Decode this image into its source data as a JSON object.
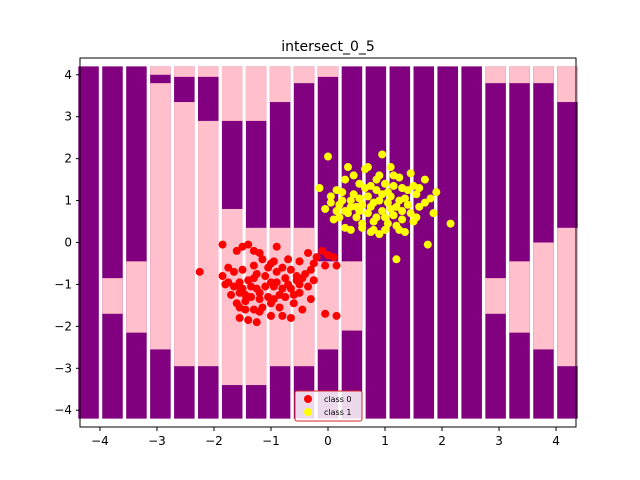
{
  "chart_data": {
    "type": "scatter",
    "title": "intersect_0_5",
    "xlabel": "",
    "ylabel": "",
    "xlim": [
      -4.35,
      4.35
    ],
    "ylim": [
      -4.4,
      4.4
    ],
    "x_ticks": [
      -4,
      -3,
      -2,
      -1,
      0,
      1,
      2,
      3,
      4
    ],
    "y_ticks": [
      -4,
      -3,
      -2,
      -1,
      0,
      1,
      2,
      3,
      4
    ],
    "grid": false,
    "legend_position": "bottom-center",
    "background_regions": {
      "colors": {
        "class_0": "#ffc0cb",
        "class_1": "#800080"
      },
      "y_min": -4.2,
      "y_max": 4.2,
      "column_half_width": 0.18,
      "columns": [
        {
          "x": -4.2,
          "class_0_intervals": []
        },
        {
          "x": -3.78,
          "class_0_intervals": [
            [
              -1.7,
              -0.85
            ]
          ]
        },
        {
          "x": -3.36,
          "class_0_intervals": [
            [
              -2.15,
              -0.45
            ]
          ]
        },
        {
          "x": -2.94,
          "class_0_intervals": [
            [
              -2.55,
              3.8
            ],
            [
              4.0,
              4.2
            ]
          ]
        },
        {
          "x": -2.52,
          "class_0_intervals": [
            [
              -2.95,
              3.35
            ],
            [
              3.95,
              4.2
            ]
          ]
        },
        {
          "x": -2.1,
          "class_0_intervals": [
            [
              -2.95,
              2.9
            ],
            [
              3.95,
              4.2
            ]
          ]
        },
        {
          "x": -1.68,
          "class_0_intervals": [
            [
              -3.4,
              0.8
            ],
            [
              2.9,
              4.2
            ]
          ]
        },
        {
          "x": -1.26,
          "class_0_intervals": [
            [
              -3.4,
              0.35
            ],
            [
              2.9,
              4.2
            ]
          ]
        },
        {
          "x": -0.84,
          "class_0_intervals": [
            [
              -2.95,
              0.35
            ],
            [
              3.35,
              4.2
            ]
          ]
        },
        {
          "x": -0.42,
          "class_0_intervals": [
            [
              -2.95,
              0.35
            ],
            [
              3.8,
              4.2
            ]
          ]
        },
        {
          "x": 0.0,
          "class_0_intervals": [
            [
              -2.55,
              -0.45
            ],
            [
              3.95,
              4.2
            ]
          ]
        },
        {
          "x": 0.42,
          "class_0_intervals": [
            [
              -2.1,
              -0.45
            ]
          ]
        },
        {
          "x": 0.84,
          "class_0_intervals": []
        },
        {
          "x": 1.26,
          "class_0_intervals": []
        },
        {
          "x": 1.68,
          "class_0_intervals": []
        },
        {
          "x": 2.1,
          "class_0_intervals": []
        },
        {
          "x": 2.52,
          "class_0_intervals": []
        },
        {
          "x": 2.94,
          "class_0_intervals": [
            [
              -1.7,
              -0.85
            ],
            [
              3.8,
              4.2
            ]
          ]
        },
        {
          "x": 3.36,
          "class_0_intervals": [
            [
              -2.15,
              -0.45
            ],
            [
              3.8,
              4.2
            ]
          ]
        },
        {
          "x": 3.78,
          "class_0_intervals": [
            [
              -2.55,
              0.0
            ],
            [
              3.8,
              4.2
            ]
          ]
        },
        {
          "x": 4.2,
          "class_0_intervals": [
            [
              -2.95,
              0.35
            ],
            [
              3.35,
              4.2
            ]
          ]
        }
      ]
    },
    "series": [
      {
        "name": "class 0",
        "color": "#ff0000",
        "points": [
          [
            -2.25,
            -0.7
          ],
          [
            -1.85,
            -0.8
          ],
          [
            -1.75,
            -0.95
          ],
          [
            -1.7,
            -1.25
          ],
          [
            -1.65,
            -0.7
          ],
          [
            -1.6,
            -1.45
          ],
          [
            -1.55,
            -1.05
          ],
          [
            -1.5,
            -0.65
          ],
          [
            -1.45,
            -1.6
          ],
          [
            -1.4,
            -1.85
          ],
          [
            -1.35,
            -1.3
          ],
          [
            -1.3,
            -0.85
          ],
          [
            -1.25,
            -1.1
          ],
          [
            -1.2,
            -1.65
          ],
          [
            -1.15,
            -1.55
          ],
          [
            -1.1,
            -0.8
          ],
          [
            -1.05,
            -1.3
          ],
          [
            -1.0,
            -0.95
          ],
          [
            -0.95,
            -1.35
          ],
          [
            -0.9,
            -0.7
          ],
          [
            -0.85,
            -1.25
          ],
          [
            -0.8,
            -1.75
          ],
          [
            -0.75,
            -0.85
          ],
          [
            -0.7,
            -1.0
          ],
          [
            -0.65,
            -0.65
          ],
          [
            -0.6,
            -1.45
          ],
          [
            -0.55,
            -0.9
          ],
          [
            -0.5,
            -1.2
          ],
          [
            -0.45,
            -1.6
          ],
          [
            -0.4,
            -0.75
          ],
          [
            -0.35,
            -1.05
          ],
          [
            -0.3,
            -1.35
          ],
          [
            -0.25,
            -0.9
          ],
          [
            -0.2,
            -0.35
          ],
          [
            -0.1,
            -0.2
          ],
          [
            0.0,
            -0.3
          ],
          [
            0.1,
            -0.35
          ],
          [
            0.15,
            -0.55
          ],
          [
            -0.05,
            -0.55
          ],
          [
            -0.05,
            -1.7
          ],
          [
            0.15,
            -1.75
          ],
          [
            -1.55,
            -1.8
          ],
          [
            -1.45,
            -1.4
          ],
          [
            -1.0,
            -1.45
          ],
          [
            -1.25,
            -0.75
          ],
          [
            -0.95,
            -1.05
          ],
          [
            -1.35,
            -1.05
          ],
          [
            -1.8,
            -1.0
          ],
          [
            -1.55,
            -1.2
          ],
          [
            -1.2,
            -1.2
          ],
          [
            -0.75,
            -1.3
          ],
          [
            -0.55,
            -0.8
          ],
          [
            -0.8,
            -1.1
          ],
          [
            -1.4,
            -0.9
          ],
          [
            -1.65,
            -1.05
          ],
          [
            -1.3,
            -0.55
          ],
          [
            -0.95,
            -0.45
          ],
          [
            -0.65,
            -1.8
          ],
          [
            -1.5,
            -1.1
          ],
          [
            -1.1,
            -1.05
          ],
          [
            -0.9,
            -0.95
          ],
          [
            -1.2,
            -1.35
          ],
          [
            -0.7,
            -0.4
          ],
          [
            -0.45,
            -0.85
          ],
          [
            -1.05,
            -0.6
          ],
          [
            -1.85,
            -0.05
          ],
          [
            -1.6,
            -0.2
          ],
          [
            -1.5,
            -0.1
          ],
          [
            -1.4,
            -0.05
          ],
          [
            -1.3,
            -0.2
          ],
          [
            -1.2,
            -0.25
          ],
          [
            -1.0,
            -0.5
          ],
          [
            -0.9,
            -0.1
          ],
          [
            -0.5,
            -0.45
          ],
          [
            -0.35,
            -0.25
          ],
          [
            -0.25,
            -0.5
          ],
          [
            -1.55,
            -0.95
          ],
          [
            -1.75,
            -0.6
          ],
          [
            -1.45,
            -1.25
          ],
          [
            -1.15,
            -0.4
          ],
          [
            -0.8,
            -0.6
          ],
          [
            -0.65,
            -1.1
          ],
          [
            -0.5,
            -1.0
          ],
          [
            -0.3,
            -0.65
          ],
          [
            -1.3,
            -1.6
          ],
          [
            -1.0,
            -1.75
          ],
          [
            -0.85,
            -1.55
          ],
          [
            -0.6,
            -1.25
          ],
          [
            -1.25,
            -1.9
          ],
          [
            -1.55,
            -1.55
          ]
        ]
      },
      {
        "name": "class 1",
        "color": "#ffff00",
        "points": [
          [
            -0.15,
            1.3
          ],
          [
            0.0,
            2.05
          ],
          [
            0.05,
            1.1
          ],
          [
            0.1,
            0.55
          ],
          [
            0.15,
            1.25
          ],
          [
            0.2,
            0.9
          ],
          [
            0.25,
            1.2
          ],
          [
            0.3,
            0.75
          ],
          [
            0.35,
            1.8
          ],
          [
            0.4,
            0.3
          ],
          [
            0.45,
            1.6
          ],
          [
            0.5,
            0.85
          ],
          [
            0.55,
            1.05
          ],
          [
            0.6,
            0.45
          ],
          [
            0.65,
            1.75
          ],
          [
            0.7,
            0.7
          ],
          [
            0.75,
            1.35
          ],
          [
            0.8,
            0.95
          ],
          [
            0.85,
            1.5
          ],
          [
            0.9,
            0.2
          ],
          [
            0.95,
            2.1
          ],
          [
            1.0,
            0.6
          ],
          [
            1.05,
            1.2
          ],
          [
            1.1,
            0.8
          ],
          [
            1.15,
            1.6
          ],
          [
            1.2,
            0.4
          ],
          [
            1.25,
            1.0
          ],
          [
            1.3,
            1.3
          ],
          [
            1.35,
            0.25
          ],
          [
            1.4,
            0.9
          ],
          [
            1.45,
            1.65
          ],
          [
            1.5,
            0.5
          ],
          [
            1.55,
            1.15
          ],
          [
            1.6,
            0.85
          ],
          [
            1.7,
            1.5
          ],
          [
            1.75,
            -0.05
          ],
          [
            1.8,
            1.05
          ],
          [
            1.9,
            1.2
          ],
          [
            2.15,
            0.45
          ],
          [
            1.2,
            -0.4
          ],
          [
            0.9,
            1.0
          ],
          [
            0.8,
            0.5
          ],
          [
            1.0,
            1.4
          ],
          [
            0.7,
            1.1
          ],
          [
            0.6,
            0.9
          ],
          [
            0.55,
            1.4
          ],
          [
            0.4,
            1.0
          ],
          [
            0.3,
            1.5
          ],
          [
            0.2,
            0.6
          ],
          [
            1.15,
            0.65
          ],
          [
            1.25,
            1.55
          ],
          [
            1.35,
            1.05
          ],
          [
            1.45,
            0.7
          ],
          [
            0.95,
            0.75
          ],
          [
            1.05,
            0.95
          ],
          [
            0.85,
            1.25
          ],
          [
            0.75,
            0.85
          ],
          [
            0.65,
            1.3
          ],
          [
            1.1,
            1.1
          ],
          [
            0.5,
            0.6
          ],
          [
            1.3,
            0.55
          ],
          [
            1.5,
            1.35
          ],
          [
            0.35,
            0.7
          ],
          [
            0.45,
            1.15
          ],
          [
            0.25,
            1.0
          ],
          [
            1.6,
            1.3
          ],
          [
            1.4,
            1.25
          ],
          [
            0.15,
            0.75
          ],
          [
            0.05,
            0.95
          ],
          [
            -0.05,
            0.8
          ],
          [
            1.0,
            0.3
          ],
          [
            0.8,
            0.3
          ],
          [
            0.6,
            0.35
          ],
          [
            1.2,
            0.85
          ],
          [
            0.9,
            1.6
          ],
          [
            1.7,
            0.95
          ],
          [
            1.85,
            0.7
          ],
          [
            0.7,
            1.8
          ],
          [
            1.1,
            1.8
          ],
          [
            1.3,
            0.75
          ],
          [
            0.95,
            1.15
          ],
          [
            0.55,
            0.75
          ],
          [
            1.15,
            1.35
          ],
          [
            0.85,
            0.6
          ],
          [
            1.05,
            0.45
          ],
          [
            0.4,
            0.85
          ],
          [
            1.55,
            0.6
          ],
          [
            0.75,
            0.25
          ],
          [
            1.25,
            0.3
          ],
          [
            0.3,
            0.35
          ]
        ]
      }
    ]
  }
}
